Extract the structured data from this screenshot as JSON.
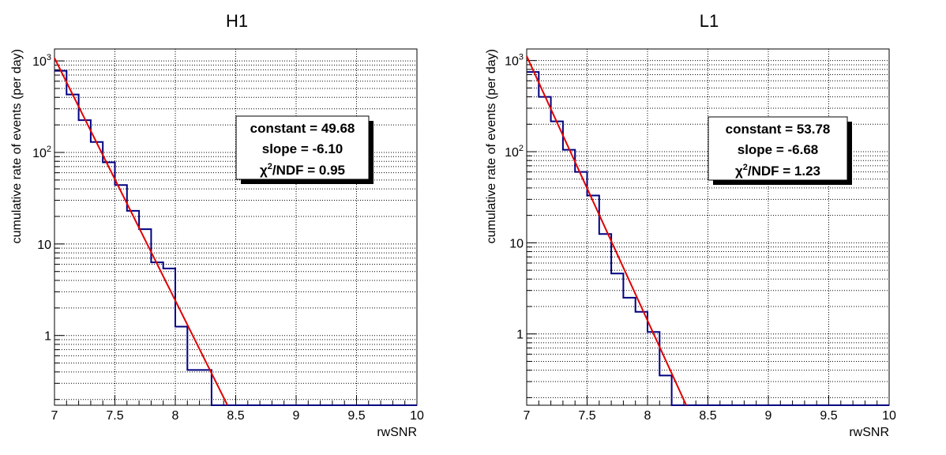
{
  "chart_data": [
    {
      "type": "line",
      "title": "H1",
      "xlabel": "rwSNR",
      "ylabel": "cumulative rate of events (per day)",
      "xlim": [
        7,
        10
      ],
      "ylog": true,
      "x_ticks": [
        "7",
        "7.5",
        "8",
        "8.5",
        "9",
        "9.5",
        "10"
      ],
      "y_ticks": [
        {
          "value": 1,
          "label": "1"
        },
        {
          "value": 10,
          "label": "10"
        },
        {
          "value": 100,
          "label": "10",
          "exp": "2"
        },
        {
          "value": 1000,
          "label": "10",
          "exp": "3"
        }
      ],
      "grid": true,
      "series": [
        {
          "type": "step-histogram",
          "color": "#000080",
          "bin_edges": [
            7.0,
            7.1,
            7.2,
            7.3,
            7.4,
            7.5,
            7.6,
            7.7,
            7.8,
            7.9,
            8.0,
            8.1,
            8.2,
            8.3
          ],
          "values": [
            780,
            430,
            225,
            130,
            78,
            44,
            23,
            14.5,
            6.3,
            5.4,
            1.25,
            0.42,
            0.42
          ]
        },
        {
          "type": "exponential-fit",
          "color": "#e00000",
          "constant": 49.68,
          "slope": -6.1
        }
      ],
      "stats": {
        "constant": "constant = 49.68",
        "slope": "slope = -6.10",
        "chi_prefix": "χ",
        "chi_sup": "2",
        "chi_suffix": "/NDF = 0.95"
      }
    },
    {
      "type": "line",
      "title": "L1",
      "xlabel": "rwSNR",
      "ylabel": "cumulative rate of events (per day)",
      "xlim": [
        7,
        10
      ],
      "ylog": true,
      "x_ticks": [
        "7",
        "7.5",
        "8",
        "8.5",
        "9",
        "9.5",
        "10"
      ],
      "y_ticks": [
        {
          "value": 1,
          "label": "1"
        },
        {
          "value": 10,
          "label": "10"
        },
        {
          "value": 100,
          "label": "10",
          "exp": "2"
        },
        {
          "value": 1000,
          "label": "10",
          "exp": "3"
        }
      ],
      "grid": true,
      "series": [
        {
          "type": "step-histogram",
          "color": "#000080",
          "bin_edges": [
            7.0,
            7.1,
            7.2,
            7.3,
            7.4,
            7.5,
            7.6,
            7.7,
            7.8,
            7.9,
            8.0,
            8.1,
            8.2
          ],
          "values": [
            750,
            400,
            215,
            105,
            60,
            33,
            12.5,
            4.6,
            2.5,
            1.75,
            1.05,
            0.35
          ]
        },
        {
          "type": "exponential-fit",
          "color": "#e00000",
          "constant": 53.78,
          "slope": -6.68
        }
      ],
      "stats": {
        "constant": "constant = 53.78",
        "slope": "slope = -6.68",
        "chi_prefix": "χ",
        "chi_sup": "2",
        "chi_suffix": "/NDF = 1.23"
      }
    }
  ]
}
